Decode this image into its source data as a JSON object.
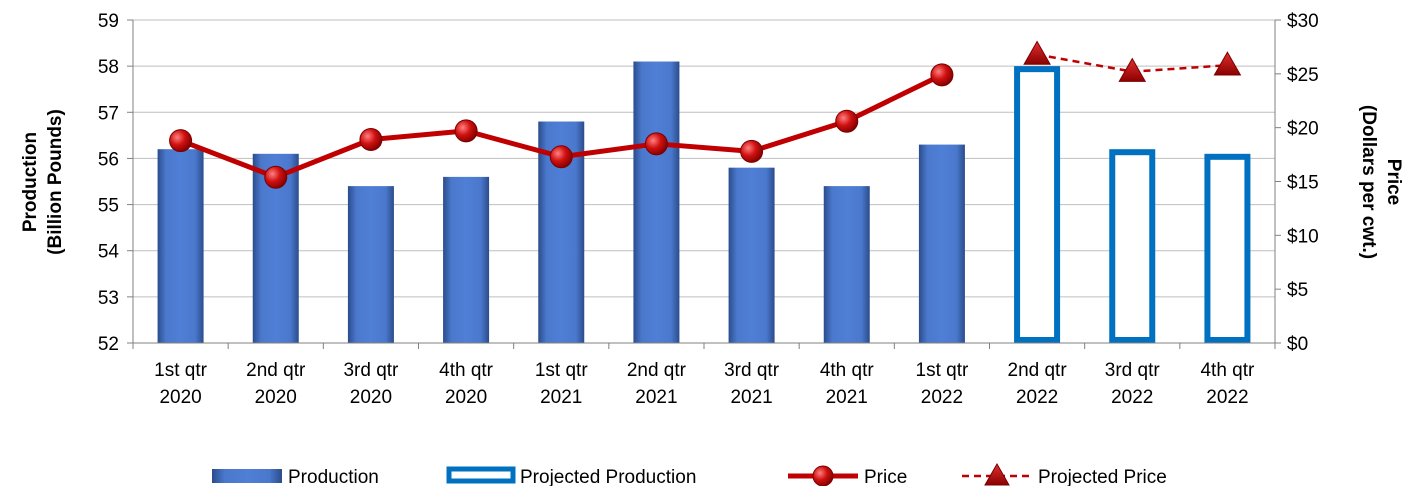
{
  "chart_data": {
    "type": "bar",
    "categories": [
      [
        "1st qtr",
        "2020"
      ],
      [
        "2nd qtr",
        "2020"
      ],
      [
        "3rd qtr",
        "2020"
      ],
      [
        "4th qtr",
        "2020"
      ],
      [
        "1st qtr",
        "2021"
      ],
      [
        "2nd qtr",
        "2021"
      ],
      [
        "3rd qtr",
        "2021"
      ],
      [
        "4th qtr",
        "2021"
      ],
      [
        "1st qtr",
        "2022"
      ],
      [
        "2nd qtr",
        "2022"
      ],
      [
        "3rd qtr",
        "2022"
      ],
      [
        "4th qtr",
        "2022"
      ]
    ],
    "y_left": {
      "label_lines": [
        "Production",
        "(Billion Pounds)"
      ],
      "ylim": [
        52,
        59
      ],
      "ticks": [
        52,
        53,
        54,
        55,
        56,
        57,
        58,
        59
      ],
      "tick_labels": [
        "52",
        "53",
        "54",
        "55",
        "56",
        "57",
        "58",
        "59"
      ]
    },
    "y_right": {
      "label_lines": [
        "Price",
        "(Dollars per cwt.)"
      ],
      "ylim": [
        0,
        30
      ],
      "ticks": [
        0,
        5,
        10,
        15,
        20,
        25,
        30
      ],
      "tick_labels": [
        "$0",
        "$5",
        "$10",
        "$15",
        "$20",
        "$25",
        "$30"
      ]
    },
    "grid": true,
    "legend_placement": "bottom",
    "series": [
      {
        "name": "Production",
        "type": "bar",
        "axis": "left",
        "color": "#4472C4",
        "values": [
          56.2,
          56.1,
          55.4,
          55.6,
          56.8,
          58.1,
          55.8,
          55.4,
          56.3,
          null,
          null,
          null
        ]
      },
      {
        "name": "Projected Production",
        "type": "bar-outline",
        "axis": "left",
        "color": "#0070C0",
        "values": [
          null,
          null,
          null,
          null,
          null,
          null,
          null,
          null,
          null,
          58.0,
          56.2,
          56.1
        ]
      },
      {
        "name": "Price",
        "type": "line",
        "axis": "right",
        "color": "#C00000",
        "marker": "circle",
        "values": [
          18.8,
          15.4,
          18.9,
          19.7,
          17.3,
          18.5,
          17.8,
          20.6,
          24.9,
          null,
          null,
          null
        ]
      },
      {
        "name": "Projected Price",
        "type": "line-dashed",
        "axis": "right",
        "color": "#C00000",
        "marker": "triangle",
        "values": [
          null,
          null,
          null,
          null,
          null,
          null,
          null,
          null,
          null,
          26.8,
          25.2,
          25.8
        ]
      }
    ]
  }
}
